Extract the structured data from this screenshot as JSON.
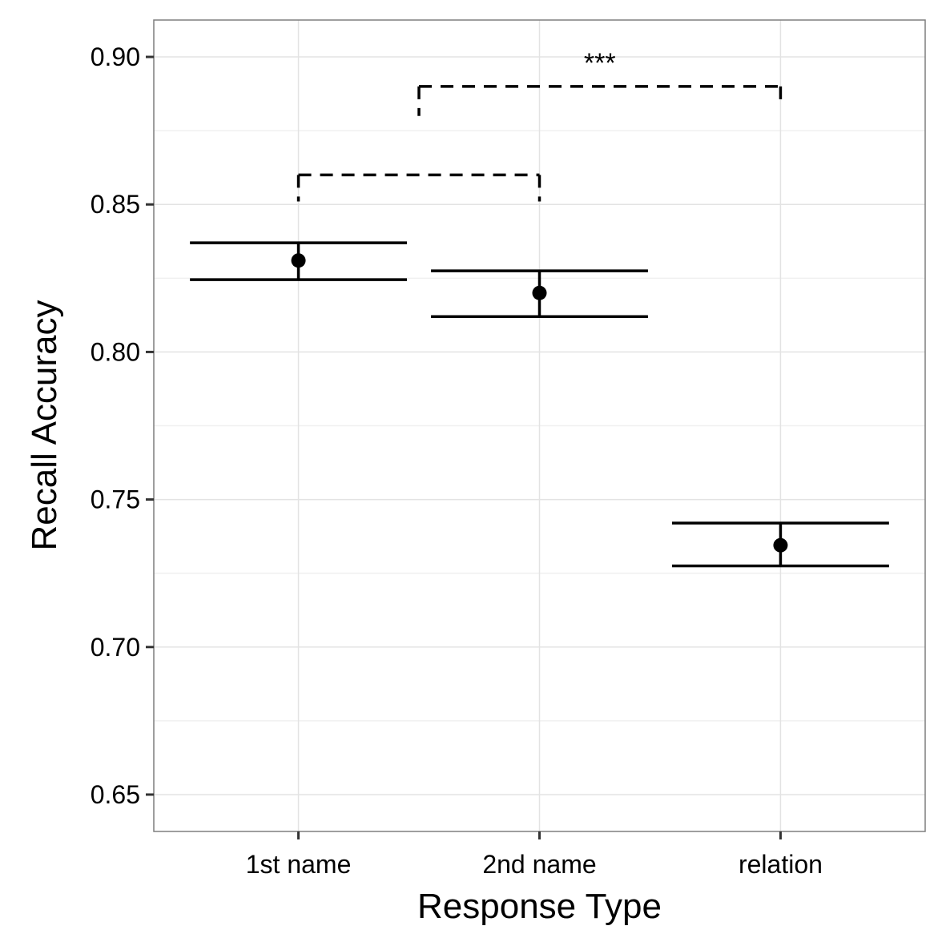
{
  "chart_data": {
    "type": "errorbar",
    "xlabel": "Response Type",
    "ylabel": "Recall Accuracy",
    "ylim": [
      0.6375,
      0.9125
    ],
    "yticks": [
      "0.65",
      "0.70",
      "0.75",
      "0.80",
      "0.85",
      "0.90"
    ],
    "categories": [
      "1st name",
      "2nd name",
      "relation"
    ],
    "points": [
      {
        "category": "1st name",
        "mean": 0.831,
        "lower": 0.8245,
        "upper": 0.837
      },
      {
        "category": "2nd name",
        "mean": 0.82,
        "lower": 0.812,
        "upper": 0.8275
      },
      {
        "category": "relation",
        "mean": 0.7345,
        "lower": 0.7275,
        "upper": 0.742
      }
    ],
    "grid": true,
    "annotations": [
      {
        "from": 1,
        "to": 2,
        "y": 0.86,
        "drop_from": 0.851,
        "drop_to": 0.851,
        "label": ""
      },
      {
        "from": 1.5,
        "to": 3,
        "y": 0.89,
        "drop_from": 0.88,
        "drop_to": 0.885,
        "label": "***"
      }
    ]
  }
}
